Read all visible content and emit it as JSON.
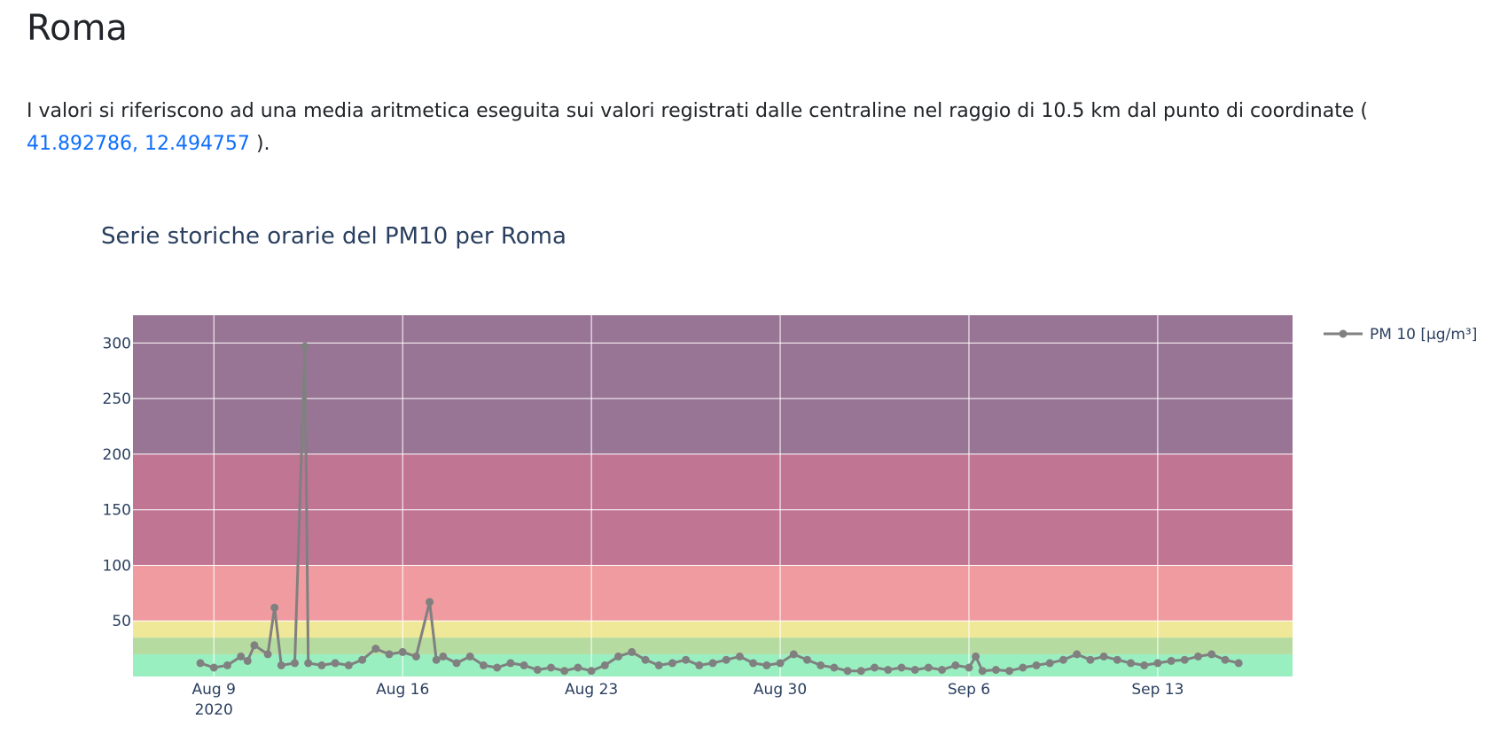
{
  "page": {
    "title": "Roma",
    "description_prefix": "I valori si riferiscono ad una media aritmetica eseguita sui valori registrati dalle centraline nel raggio di 10.5 km dal punto di coordinate (",
    "coordinates_link": "41.892786, 12.494757",
    "description_suffix": ")."
  },
  "chart_data": {
    "type": "line",
    "title": "Serie storiche orarie del PM10 per Roma",
    "xlabel": "",
    "ylabel": "",
    "x_start": "2020-08-06",
    "x_end": "2020-09-18",
    "ylim": [
      0,
      325
    ],
    "y_ticks": [
      50,
      100,
      150,
      200,
      250,
      300
    ],
    "x_ticks": [
      {
        "date": "2020-08-09",
        "label": "Aug 9",
        "sublabel": "2020"
      },
      {
        "date": "2020-08-16",
        "label": "Aug 16",
        "sublabel": ""
      },
      {
        "date": "2020-08-23",
        "label": "Aug 23",
        "sublabel": ""
      },
      {
        "date": "2020-08-30",
        "label": "Aug 30",
        "sublabel": ""
      },
      {
        "date": "2020-09-06",
        "label": "Sep 6",
        "sublabel": ""
      },
      {
        "date": "2020-09-13",
        "label": "Sep 13",
        "sublabel": ""
      }
    ],
    "grid": true,
    "legend_position": "top-right",
    "background_bands": [
      {
        "from": 0,
        "to": 20,
        "color": "#9aefc0"
      },
      {
        "from": 20,
        "to": 35,
        "color": "#b5dba0"
      },
      {
        "from": 35,
        "to": 50,
        "color": "#efe899"
      },
      {
        "from": 50,
        "to": 100,
        "color": "#f09ba0"
      },
      {
        "from": 100,
        "to": 200,
        "color": "#c07592"
      },
      {
        "from": 200,
        "to": 325,
        "color": "#997595"
      }
    ],
    "series": [
      {
        "name": "PM 10 [µg/m³]",
        "color": "#808080",
        "points": [
          [
            "2020-08-08 12:00",
            12
          ],
          [
            "2020-08-09 00:00",
            8
          ],
          [
            "2020-08-09 12:00",
            10
          ],
          [
            "2020-08-10 00:00",
            18
          ],
          [
            "2020-08-10 06:00",
            14
          ],
          [
            "2020-08-10 12:00",
            28
          ],
          [
            "2020-08-11 00:00",
            20
          ],
          [
            "2020-08-11 06:00",
            62
          ],
          [
            "2020-08-11 12:00",
            10
          ],
          [
            "2020-08-12 00:00",
            12
          ],
          [
            "2020-08-12 09:00",
            297
          ],
          [
            "2020-08-12 12:00",
            12
          ],
          [
            "2020-08-13 00:00",
            10
          ],
          [
            "2020-08-13 12:00",
            12
          ],
          [
            "2020-08-14 00:00",
            10
          ],
          [
            "2020-08-14 12:00",
            15
          ],
          [
            "2020-08-15 00:00",
            25
          ],
          [
            "2020-08-15 12:00",
            20
          ],
          [
            "2020-08-16 00:00",
            22
          ],
          [
            "2020-08-16 12:00",
            18
          ],
          [
            "2020-08-17 00:00",
            67
          ],
          [
            "2020-08-17 06:00",
            15
          ],
          [
            "2020-08-17 12:00",
            18
          ],
          [
            "2020-08-18 00:00",
            12
          ],
          [
            "2020-08-18 12:00",
            18
          ],
          [
            "2020-08-19 00:00",
            10
          ],
          [
            "2020-08-19 12:00",
            8
          ],
          [
            "2020-08-20 00:00",
            12
          ],
          [
            "2020-08-20 12:00",
            10
          ],
          [
            "2020-08-21 00:00",
            6
          ],
          [
            "2020-08-21 12:00",
            8
          ],
          [
            "2020-08-22 00:00",
            5
          ],
          [
            "2020-08-22 12:00",
            8
          ],
          [
            "2020-08-23 00:00",
            5
          ],
          [
            "2020-08-23 12:00",
            10
          ],
          [
            "2020-08-24 00:00",
            18
          ],
          [
            "2020-08-24 12:00",
            22
          ],
          [
            "2020-08-25 00:00",
            15
          ],
          [
            "2020-08-25 12:00",
            10
          ],
          [
            "2020-08-26 00:00",
            12
          ],
          [
            "2020-08-26 12:00",
            15
          ],
          [
            "2020-08-27 00:00",
            10
          ],
          [
            "2020-08-27 12:00",
            12
          ],
          [
            "2020-08-28 00:00",
            15
          ],
          [
            "2020-08-28 12:00",
            18
          ],
          [
            "2020-08-29 00:00",
            12
          ],
          [
            "2020-08-29 12:00",
            10
          ],
          [
            "2020-08-30 00:00",
            12
          ],
          [
            "2020-08-30 12:00",
            20
          ],
          [
            "2020-08-31 00:00",
            15
          ],
          [
            "2020-08-31 12:00",
            10
          ],
          [
            "2020-09-01 00:00",
            8
          ],
          [
            "2020-09-01 12:00",
            5
          ],
          [
            "2020-09-02 00:00",
            5
          ],
          [
            "2020-09-02 12:00",
            8
          ],
          [
            "2020-09-03 00:00",
            6
          ],
          [
            "2020-09-03 12:00",
            8
          ],
          [
            "2020-09-04 00:00",
            6
          ],
          [
            "2020-09-04 12:00",
            8
          ],
          [
            "2020-09-05 00:00",
            6
          ],
          [
            "2020-09-05 12:00",
            10
          ],
          [
            "2020-09-06 00:00",
            8
          ],
          [
            "2020-09-06 06:00",
            18
          ],
          [
            "2020-09-06 12:00",
            5
          ],
          [
            "2020-09-07 00:00",
            6
          ],
          [
            "2020-09-07 12:00",
            5
          ],
          [
            "2020-09-08 00:00",
            8
          ],
          [
            "2020-09-08 12:00",
            10
          ],
          [
            "2020-09-09 00:00",
            12
          ],
          [
            "2020-09-09 12:00",
            15
          ],
          [
            "2020-09-10 00:00",
            20
          ],
          [
            "2020-09-10 12:00",
            15
          ],
          [
            "2020-09-11 00:00",
            18
          ],
          [
            "2020-09-11 12:00",
            15
          ],
          [
            "2020-09-12 00:00",
            12
          ],
          [
            "2020-09-12 12:00",
            10
          ],
          [
            "2020-09-13 00:00",
            12
          ],
          [
            "2020-09-13 12:00",
            14
          ],
          [
            "2020-09-14 00:00",
            15
          ],
          [
            "2020-09-14 12:00",
            18
          ],
          [
            "2020-09-15 00:00",
            20
          ],
          [
            "2020-09-15 12:00",
            15
          ],
          [
            "2020-09-16 00:00",
            12
          ]
        ]
      }
    ]
  }
}
